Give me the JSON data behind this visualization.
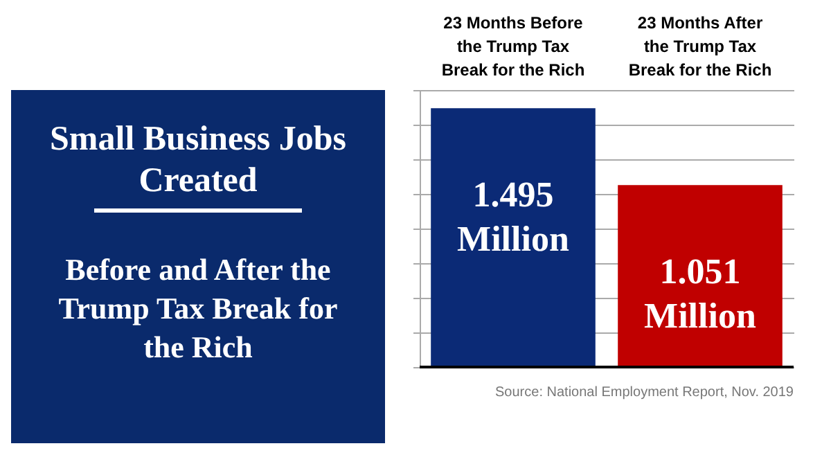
{
  "chart_data": {
    "type": "bar",
    "title": "Small Business Jobs Created",
    "subtitle": "Before and After the Trump Tax Break for the Rich",
    "categories": [
      "23 Months Before the Trump Tax Break for the Rich",
      "23 Months After the Trump Tax Break for the Rich"
    ],
    "values": [
      1.495,
      1.051
    ],
    "colors": [
      "#0b2a76",
      "#c00000"
    ],
    "value_labels": [
      "1.495 Million",
      "1.051 Million"
    ],
    "grid": "y",
    "tick_labels": "x",
    "annotations": [
      "Source: National Employment Report, Nov. 2019"
    ]
  }
}
